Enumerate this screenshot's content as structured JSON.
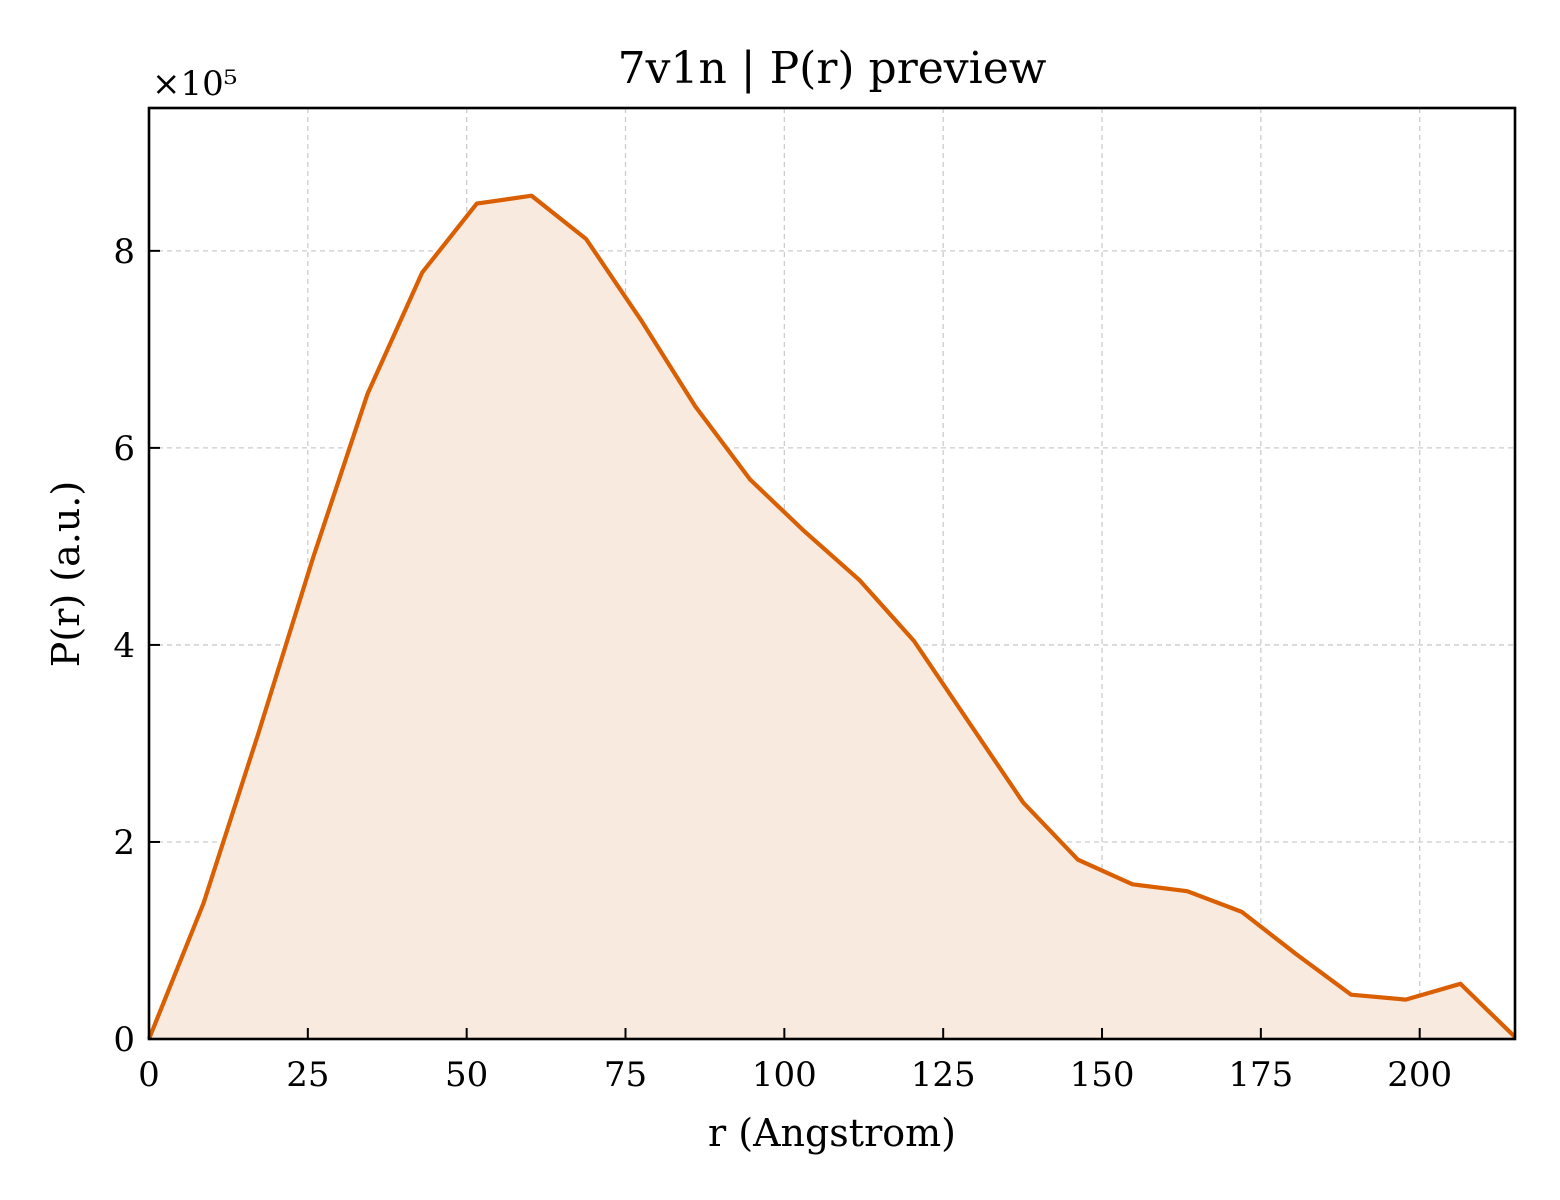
{
  "chart_data": {
    "type": "area",
    "title": "7v1n | P(r) preview",
    "xlabel": "r (Angstrom)",
    "ylabel": "P(r) (a.u.)",
    "y_multiplier_label": "×10⁵",
    "xlim": [
      0,
      215
    ],
    "ylim": [
      0,
      9.45
    ],
    "xticks": [
      0,
      25,
      50,
      75,
      100,
      125,
      150,
      175,
      200
    ],
    "yticks": [
      0,
      2,
      4,
      6,
      8
    ],
    "grid": true,
    "line_color": "#d95f02",
    "fill_color": "#f9eadf",
    "series": [
      {
        "x": [
          0,
          8.6,
          17.2,
          25.8,
          34.4,
          43.0,
          51.6,
          60.2,
          68.8,
          77.4,
          86.0,
          94.6,
          103.2,
          111.8,
          120.4,
          129.0,
          137.6,
          146.2,
          154.8,
          163.4,
          172.0,
          180.6,
          189.2,
          197.8,
          206.4,
          215.0
        ],
        "y": [
          0,
          1.38,
          3.1,
          4.88,
          6.55,
          7.78,
          8.48,
          8.56,
          8.12,
          7.3,
          6.42,
          5.68,
          5.15,
          4.66,
          4.04,
          3.22,
          2.4,
          1.82,
          1.57,
          1.5,
          1.29,
          0.86,
          0.45,
          0.4,
          0.56,
          0.02
        ]
      }
    ]
  }
}
